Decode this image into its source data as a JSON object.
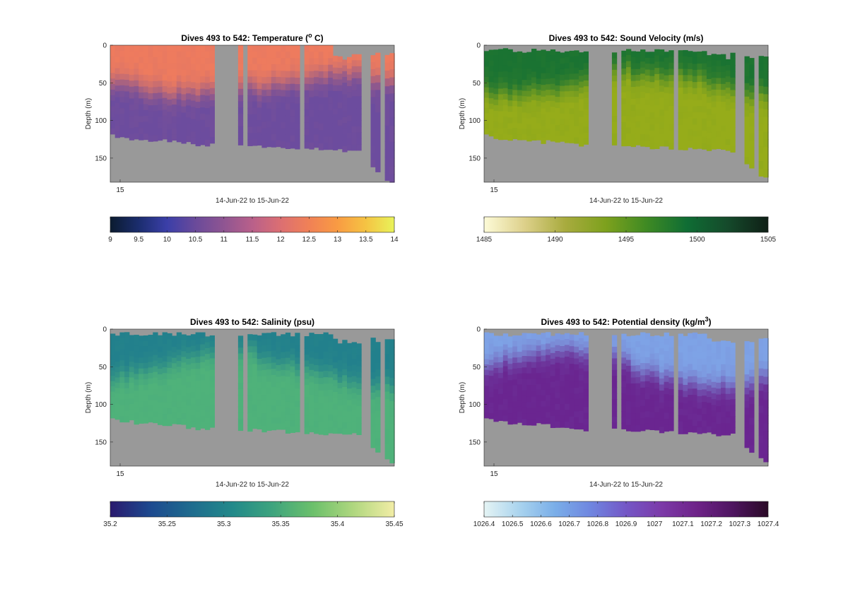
{
  "chart_data": [
    {
      "type": "heatmap",
      "title": "Dives 493 to 542: Temperature (",
      "title_sup": "o",
      "title_after": " C)",
      "ylabel": "Depth (m)",
      "xlabel": "14-Jun-22 to 15-Jun-22",
      "x_tick_label": "15",
      "y_ticks": [
        0,
        50,
        100,
        150
      ],
      "y_tick_labels": [
        "0",
        "50",
        "100",
        "150"
      ],
      "ylim": [
        0,
        182
      ],
      "y_reversed": true,
      "colorbar": {
        "ticks": [
          "9",
          "9.5",
          "10",
          "10.5",
          "11",
          "11.5",
          "12",
          "12.5",
          "13",
          "13.5",
          "14"
        ],
        "range": [
          9,
          14
        ],
        "colors": [
          "#0b1b2f",
          "#1b2d6e",
          "#3b3fa8",
          "#6a4a9a",
          "#8f5592",
          "#b9608a",
          "#dc6f72",
          "#f08156",
          "#f99b43",
          "#f5c343",
          "#e8f35a"
        ]
      },
      "surface_color": "#ee7b5e",
      "deep_color": "#6c4c9e",
      "nan_color": "#999999"
    },
    {
      "type": "heatmap",
      "title": "Dives 493 to 542: Sound Velocity (m/s)",
      "ylabel": "Depth (m)",
      "xlabel": "14-Jun-22 to 15-Jun-22",
      "x_tick_label": "15",
      "y_ticks": [
        0,
        50,
        100,
        150
      ],
      "y_tick_labels": [
        "0",
        "50",
        "100",
        "150"
      ],
      "ylim": [
        0,
        182
      ],
      "y_reversed": true,
      "colorbar": {
        "ticks": [
          "1485",
          "1490",
          "1495",
          "1500",
          "1505"
        ],
        "range": [
          1485,
          1505
        ],
        "colors": [
          "#fdfbd8",
          "#ddd08a",
          "#a8ab3e",
          "#7da11d",
          "#3f8a23",
          "#0f6d34",
          "#154a2b",
          "#0f1f16"
        ]
      },
      "surface_color": "#1a7332",
      "deep_color": "#96ac1a",
      "nan_color": "#999999"
    },
    {
      "type": "heatmap",
      "title": "Dives 493 to 542: Salinity (psu)",
      "ylabel": "Depth (m)",
      "xlabel": "14-Jun-22 to 15-Jun-22",
      "x_tick_label": "15",
      "y_ticks": [
        0,
        50,
        100,
        150
      ],
      "y_tick_labels": [
        "0",
        "50",
        "100",
        "150"
      ],
      "ylim": [
        0,
        182
      ],
      "y_reversed": true,
      "colorbar": {
        "ticks": [
          "35.2",
          "35.25",
          "35.3",
          "35.35",
          "35.4",
          "35.45"
        ],
        "range": [
          35.2,
          35.45
        ],
        "colors": [
          "#2a1a6e",
          "#1d4a8f",
          "#1f6c8e",
          "#22898a",
          "#3ea47e",
          "#6cc06b",
          "#b0d77f",
          "#f2eda6"
        ]
      },
      "surface_color": "#22808c",
      "deep_color": "#4fb27a",
      "nan_color": "#999999"
    },
    {
      "type": "heatmap",
      "title": "Dives 493 to 542: Potential density (kg/m",
      "title_sup": "3",
      "title_after": ")",
      "ylabel": "Depth (m)",
      "xlabel": "14-Jun-22 to 15-Jun-22",
      "x_tick_label": "15",
      "y_ticks": [
        0,
        50,
        100,
        150
      ],
      "y_tick_labels": [
        "0",
        "50",
        "100",
        "150"
      ],
      "ylim": [
        0,
        182
      ],
      "y_reversed": true,
      "colorbar": {
        "ticks": [
          "1026.4",
          "1026.5",
          "1026.6",
          "1026.7",
          "1026.8",
          "1026.9",
          "1027",
          "1027.1",
          "1027.2",
          "1027.3",
          "1027.4"
        ],
        "range": [
          1026.4,
          1027.4
        ],
        "colors": [
          "#e5f4f4",
          "#a9d3ee",
          "#7aaee8",
          "#6f86e0",
          "#7457c6",
          "#7c3aa8",
          "#6e2388",
          "#4e1560",
          "#2a0a26"
        ]
      },
      "surface_color": "#7ea3e6",
      "deep_color": "#6a2590",
      "nan_color": "#999999"
    }
  ]
}
